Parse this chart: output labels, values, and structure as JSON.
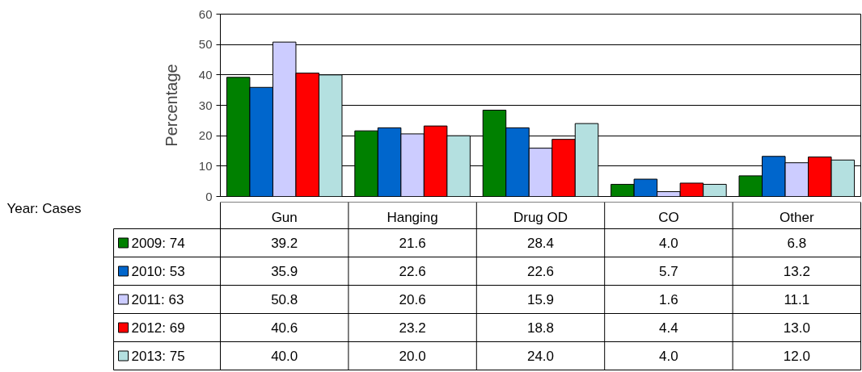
{
  "chart_data": {
    "type": "bar",
    "ylabel": "Percentage",
    "legend_title": "Year:   Cases",
    "categories": [
      "Gun",
      "Hanging",
      "Drug OD",
      "CO",
      "Other"
    ],
    "ylim": [
      0,
      60
    ],
    "yticks": [
      0,
      10,
      20,
      30,
      40,
      50,
      60
    ],
    "grid": "y",
    "legend": "bottom",
    "data_labels": true,
    "series": [
      {
        "name": "2009: 74",
        "color": "#008000",
        "values": [
          39.2,
          21.6,
          28.4,
          4.0,
          6.8
        ],
        "value_labels": [
          "39.2",
          "21.6",
          "28.4",
          "4.0",
          "6.8"
        ]
      },
      {
        "name": "2010: 53",
        "color": "#0066cc",
        "values": [
          35.9,
          22.6,
          22.6,
          5.7,
          13.2
        ],
        "value_labels": [
          "35.9",
          "22.6",
          "22.6",
          "5.7",
          "13.2"
        ]
      },
      {
        "name": "2011: 63",
        "color": "#ccccff",
        "values": [
          50.8,
          20.6,
          15.9,
          1.6,
          11.1
        ],
        "value_labels": [
          "50.8",
          "20.6",
          "15.9",
          "1.6",
          "11.1"
        ]
      },
      {
        "name": "2012: 69",
        "color": "#ff0000",
        "values": [
          40.6,
          23.2,
          18.8,
          4.4,
          13.0
        ],
        "value_labels": [
          "40.6",
          "23.2",
          "18.8",
          "4.4",
          "13.0"
        ]
      },
      {
        "name": "2013: 75",
        "color": "#b4e0e0",
        "values": [
          40.0,
          20.0,
          24.0,
          4.0,
          12.0
        ],
        "value_labels": [
          "40.0",
          "20.0",
          "24.0",
          "4.0",
          "12.0"
        ]
      }
    ]
  }
}
